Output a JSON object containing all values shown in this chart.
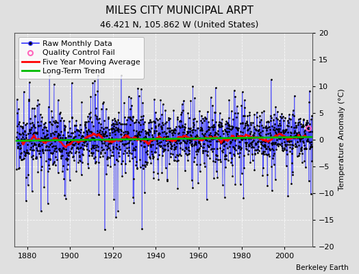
{
  "title": "MILES CITY MUNICIPAL ARPT",
  "subtitle": "46.421 N, 105.862 W (United States)",
  "ylabel": "Temperature Anomaly (°C)",
  "attribution": "Berkeley Earth",
  "xlim": [
    1874,
    2013
  ],
  "ylim": [
    -20,
    20
  ],
  "yticks": [
    -20,
    -15,
    -10,
    -5,
    0,
    5,
    10,
    15,
    20
  ],
  "xticks": [
    1880,
    1900,
    1920,
    1940,
    1960,
    1980,
    2000
  ],
  "start_year": 1875,
  "end_year": 2012,
  "seed": 17,
  "bg_color": "#e0e0e0",
  "plot_bg_color": "#e0e0e0",
  "raw_line_color": "#3333ff",
  "raw_marker_color": "#000000",
  "moving_avg_color": "#ff0000",
  "trend_color": "#00bb00",
  "qc_fail_color": "#ff66bb",
  "legend_fontsize": 8,
  "title_fontsize": 11,
  "subtitle_fontsize": 9,
  "grid_color": "#ffffff",
  "spine_color": "#555555"
}
